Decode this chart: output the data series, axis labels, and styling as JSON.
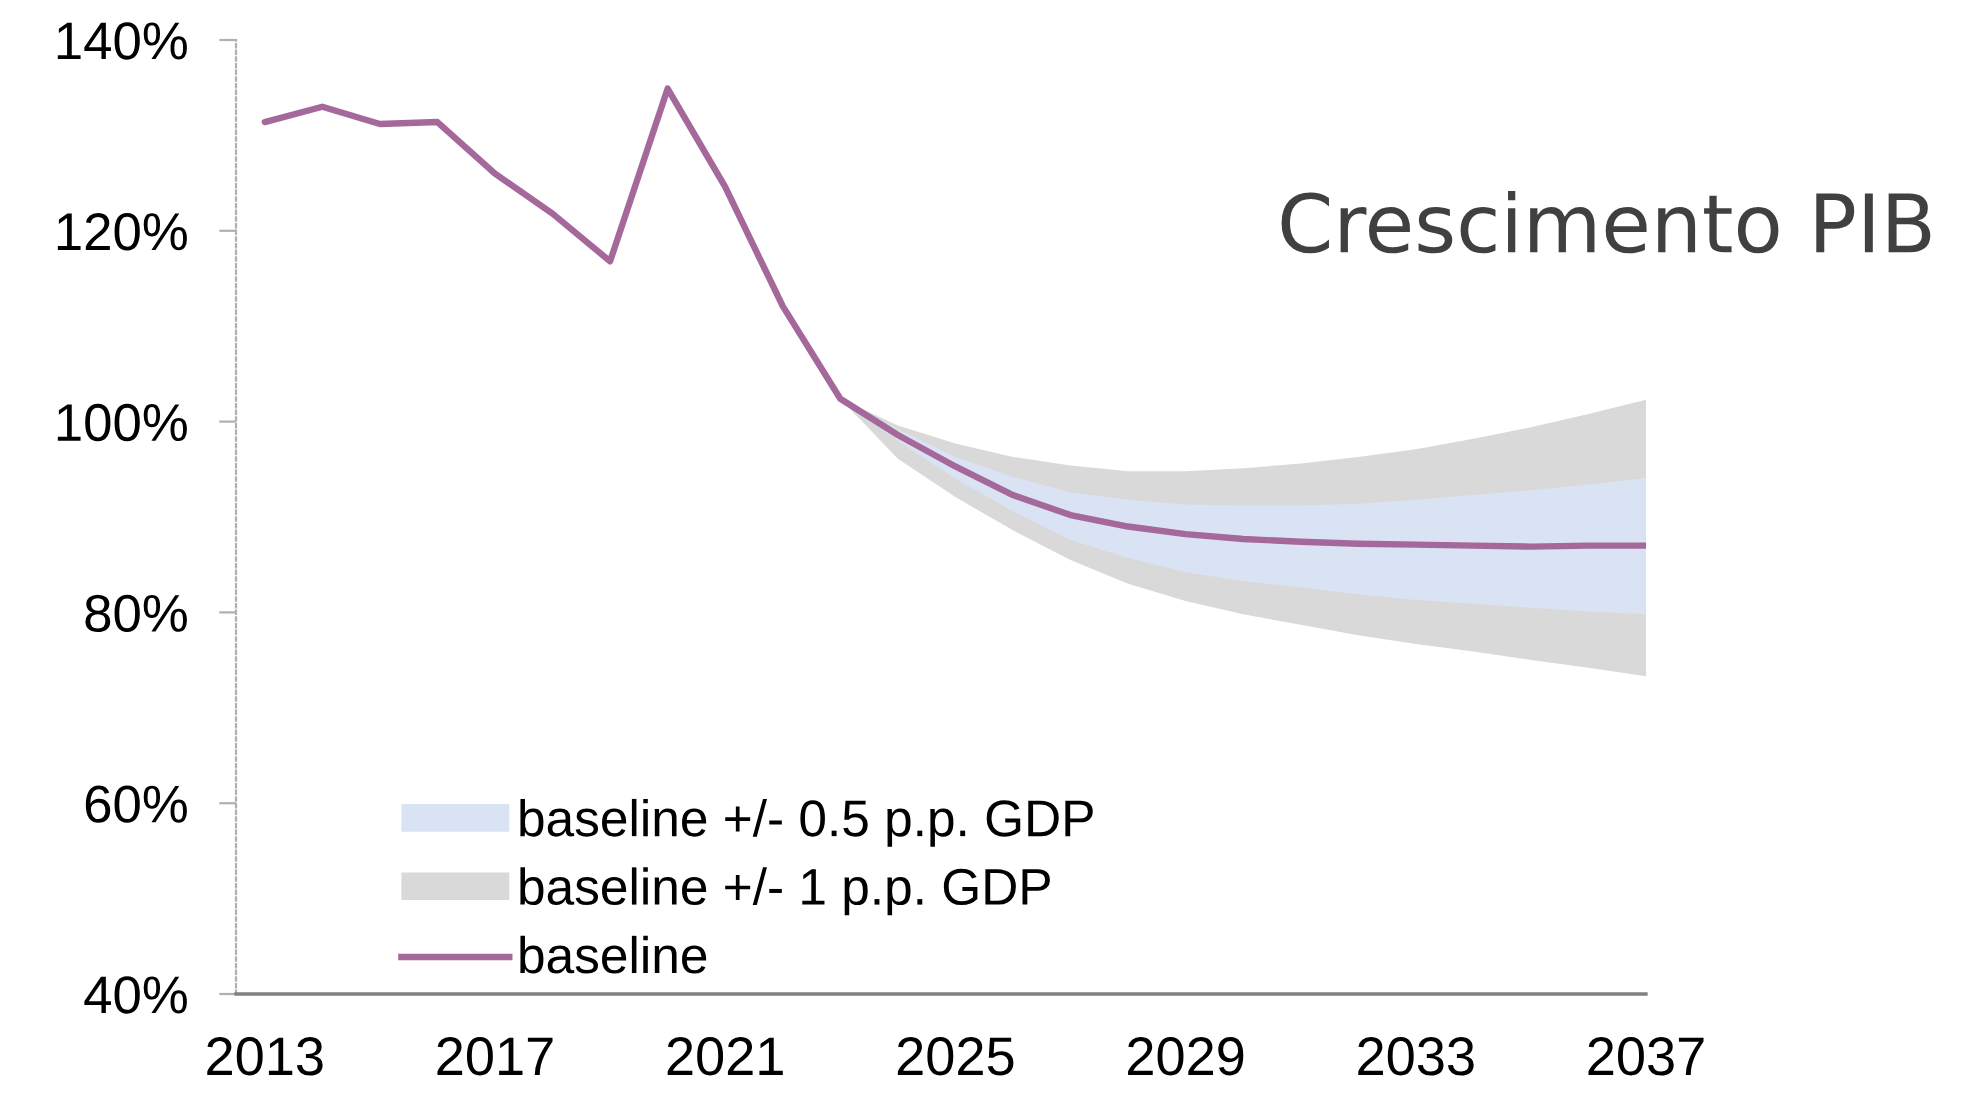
{
  "chart_data": {
    "type": "line",
    "title": "Crescimento PIB",
    "x": [
      2013,
      2014,
      2015,
      2016,
      2017,
      2018,
      2019,
      2020,
      2021,
      2022,
      2023,
      2024,
      2025,
      2026,
      2027,
      2028,
      2029,
      2030,
      2031,
      2032,
      2033,
      2034,
      2035,
      2036,
      2037
    ],
    "series": [
      {
        "name": "baseline +/- 0.5 p.p. GDP",
        "type": "area",
        "color": "#dae3f3",
        "x": [
          2023,
          2024,
          2025,
          2026,
          2027,
          2028,
          2029,
          2030,
          2031,
          2032,
          2033,
          2034,
          2035,
          2036,
          2037
        ],
        "values": [
          null,
          null,
          null,
          null,
          null,
          null,
          null,
          null,
          null,
          null,
          null,
          null,
          null,
          null,
          null
        ],
        "lower": [
          102.4,
          98.0,
          94.0,
          90.6,
          87.6,
          85.7,
          84.2,
          83.3,
          82.6,
          81.9,
          81.3,
          80.9,
          80.5,
          80.1,
          79.8
        ],
        "upper": [
          102.4,
          99.2,
          96.3,
          94.2,
          92.6,
          91.8,
          91.3,
          91.2,
          91.2,
          91.4,
          91.8,
          92.3,
          92.8,
          93.4,
          94.1
        ]
      },
      {
        "name": "baseline +/- 1 p.p. GDP",
        "type": "area",
        "color": "#d9d9d9",
        "x": [
          2023,
          2024,
          2025,
          2026,
          2027,
          2028,
          2029,
          2030,
          2031,
          2032,
          2033,
          2034,
          2035,
          2036,
          2037
        ],
        "values": [
          null,
          null,
          null,
          null,
          null,
          null,
          null,
          null,
          null,
          null,
          null,
          null,
          null,
          null,
          null
        ],
        "lower": [
          102.4,
          96.1,
          92.1,
          88.6,
          85.5,
          83.0,
          81.2,
          79.8,
          78.7,
          77.6,
          76.7,
          75.9,
          75.0,
          74.2,
          73.3
        ],
        "upper": [
          102.4,
          99.6,
          97.7,
          96.3,
          95.4,
          94.8,
          94.8,
          95.1,
          95.6,
          96.3,
          97.1,
          98.2,
          99.4,
          100.8,
          102.3
        ]
      },
      {
        "name": "baseline",
        "color": "#a5689b",
        "values": [
          131.4,
          133.0,
          131.2,
          131.4,
          126.0,
          121.8,
          116.8,
          134.9,
          124.6,
          112.1,
          102.4,
          98.6,
          95.3,
          92.3,
          90.2,
          89.0,
          88.2,
          87.7,
          87.4,
          87.2,
          87.1,
          87.0,
          86.9,
          87.0,
          87.0
        ]
      }
    ],
    "xlim": [
      2012.5,
      2037
    ],
    "xticks": [
      2013,
      2017,
      2021,
      2025,
      2029,
      2033,
      2037
    ],
    "ylim": [
      40,
      140
    ],
    "yticks": [
      {
        "value": 40,
        "label": "40%"
      },
      {
        "value": 60,
        "label": "60%"
      },
      {
        "value": 80,
        "label": "80%"
      },
      {
        "value": 100,
        "label": "100%"
      },
      {
        "value": 120,
        "label": "120%"
      },
      {
        "value": 140,
        "label": "140%"
      }
    ],
    "legend": "bottom left",
    "line_style": "solid",
    "marker": "none"
  }
}
